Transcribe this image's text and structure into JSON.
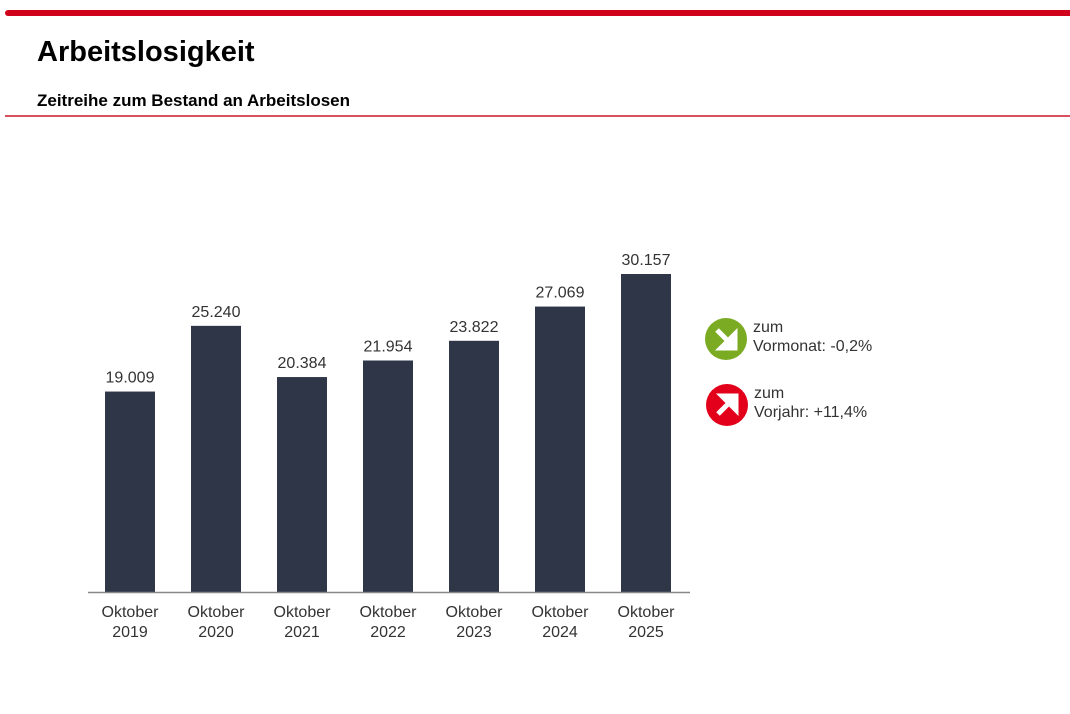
{
  "header": {
    "title": "Arbeitslosigkeit",
    "subtitle": "Zeitreihe zum Bestand an Arbeitslosen",
    "accent_color": "#d0021b"
  },
  "chart_data": {
    "type": "bar",
    "categories": [
      [
        "Oktober",
        "2019"
      ],
      [
        "Oktober",
        "2020"
      ],
      [
        "Oktober",
        "2021"
      ],
      [
        "Oktober",
        "2022"
      ],
      [
        "Oktober",
        "2023"
      ],
      [
        "Oktober",
        "2024"
      ],
      [
        "Oktober",
        "2025"
      ]
    ],
    "values": [
      19009,
      25240,
      20384,
      21954,
      23822,
      27069,
      30157
    ],
    "value_labels": [
      "19.009",
      "25.240",
      "20.384",
      "21.954",
      "23.822",
      "27.069",
      "30.157"
    ],
    "bar_color": "#2e3648",
    "ylim": [
      0,
      30157
    ],
    "grid": false
  },
  "indicators": [
    {
      "icon": "arrow-down-right-icon",
      "color": "#7aab23",
      "line1": "zum",
      "label": "Vormonat:",
      "value": "-0,2%"
    },
    {
      "icon": "arrow-up-right-icon",
      "color": "#e2001a",
      "line1": "zum",
      "label": "Vorjahr:",
      "value": "+11,4%"
    }
  ]
}
